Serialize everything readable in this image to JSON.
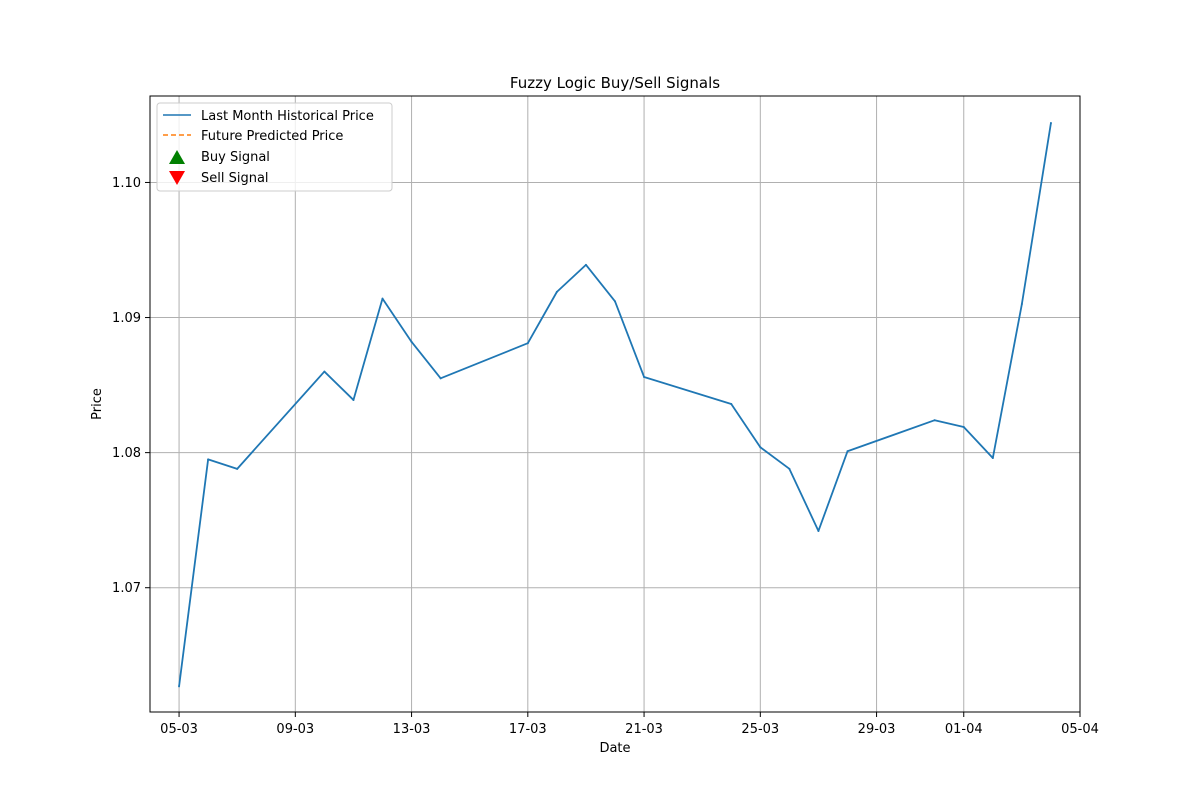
{
  "chart_data": {
    "type": "line",
    "title": "Fuzzy Logic Buy/Sell Signals",
    "xlabel": "Date",
    "ylabel": "Price",
    "x_type": "date",
    "year": 2024,
    "xlim": [
      "2024-03-04",
      "2024-04-05"
    ],
    "ylim": [
      1.0608,
      1.1064
    ],
    "x_ticks": [
      "2024-03-05",
      "2024-03-09",
      "2024-03-13",
      "2024-03-17",
      "2024-03-21",
      "2024-03-25",
      "2024-03-29",
      "2024-04-01",
      "2024-04-05"
    ],
    "x_tick_labels": [
      "05-03",
      "09-03",
      "13-03",
      "17-03",
      "21-03",
      "25-03",
      "29-03",
      "01-04",
      "05-04"
    ],
    "y_ticks": [
      1.07,
      1.08,
      1.09,
      1.1
    ],
    "y_tick_labels": [
      "1.07",
      "1.08",
      "1.09",
      "1.10"
    ],
    "grid": true,
    "legend_position": "top-left",
    "legend": [
      {
        "label": "Last Month Historical Price",
        "style": "solid-line",
        "color": "#1f77b4"
      },
      {
        "label": "Future Predicted Price",
        "style": "dashed-line",
        "color": "#ff7f0e"
      },
      {
        "label": "Buy Signal",
        "style": "up-triangle",
        "color": "#008000"
      },
      {
        "label": "Sell Signal",
        "style": "down-triangle",
        "color": "#ff0000"
      }
    ],
    "series": [
      {
        "name": "Last Month Historical Price",
        "color": "#1f77b4",
        "points": [
          {
            "x": "2024-03-05",
            "y": 1.0627
          },
          {
            "x": "2024-03-06",
            "y": 1.0795
          },
          {
            "x": "2024-03-07",
            "y": 1.0788
          },
          {
            "x": "2024-03-10",
            "y": 1.086
          },
          {
            "x": "2024-03-11",
            "y": 1.0839
          },
          {
            "x": "2024-03-12",
            "y": 1.0914
          },
          {
            "x": "2024-03-13",
            "y": 1.0882
          },
          {
            "x": "2024-03-14",
            "y": 1.0855
          },
          {
            "x": "2024-03-17",
            "y": 1.0881
          },
          {
            "x": "2024-03-18",
            "y": 1.0919
          },
          {
            "x": "2024-03-19",
            "y": 1.0939
          },
          {
            "x": "2024-03-20",
            "y": 1.0912
          },
          {
            "x": "2024-03-21",
            "y": 1.0856
          },
          {
            "x": "2024-03-24",
            "y": 1.0836
          },
          {
            "x": "2024-03-25",
            "y": 1.0804
          },
          {
            "x": "2024-03-26",
            "y": 1.0788
          },
          {
            "x": "2024-03-27",
            "y": 1.0742
          },
          {
            "x": "2024-03-28",
            "y": 1.0801
          },
          {
            "x": "2024-03-31",
            "y": 1.0824
          },
          {
            "x": "2024-04-01",
            "y": 1.0819
          },
          {
            "x": "2024-04-02",
            "y": 1.0796
          },
          {
            "x": "2024-04-03",
            "y": 1.091
          },
          {
            "x": "2024-04-04",
            "y": 1.1044
          }
        ]
      }
    ]
  }
}
